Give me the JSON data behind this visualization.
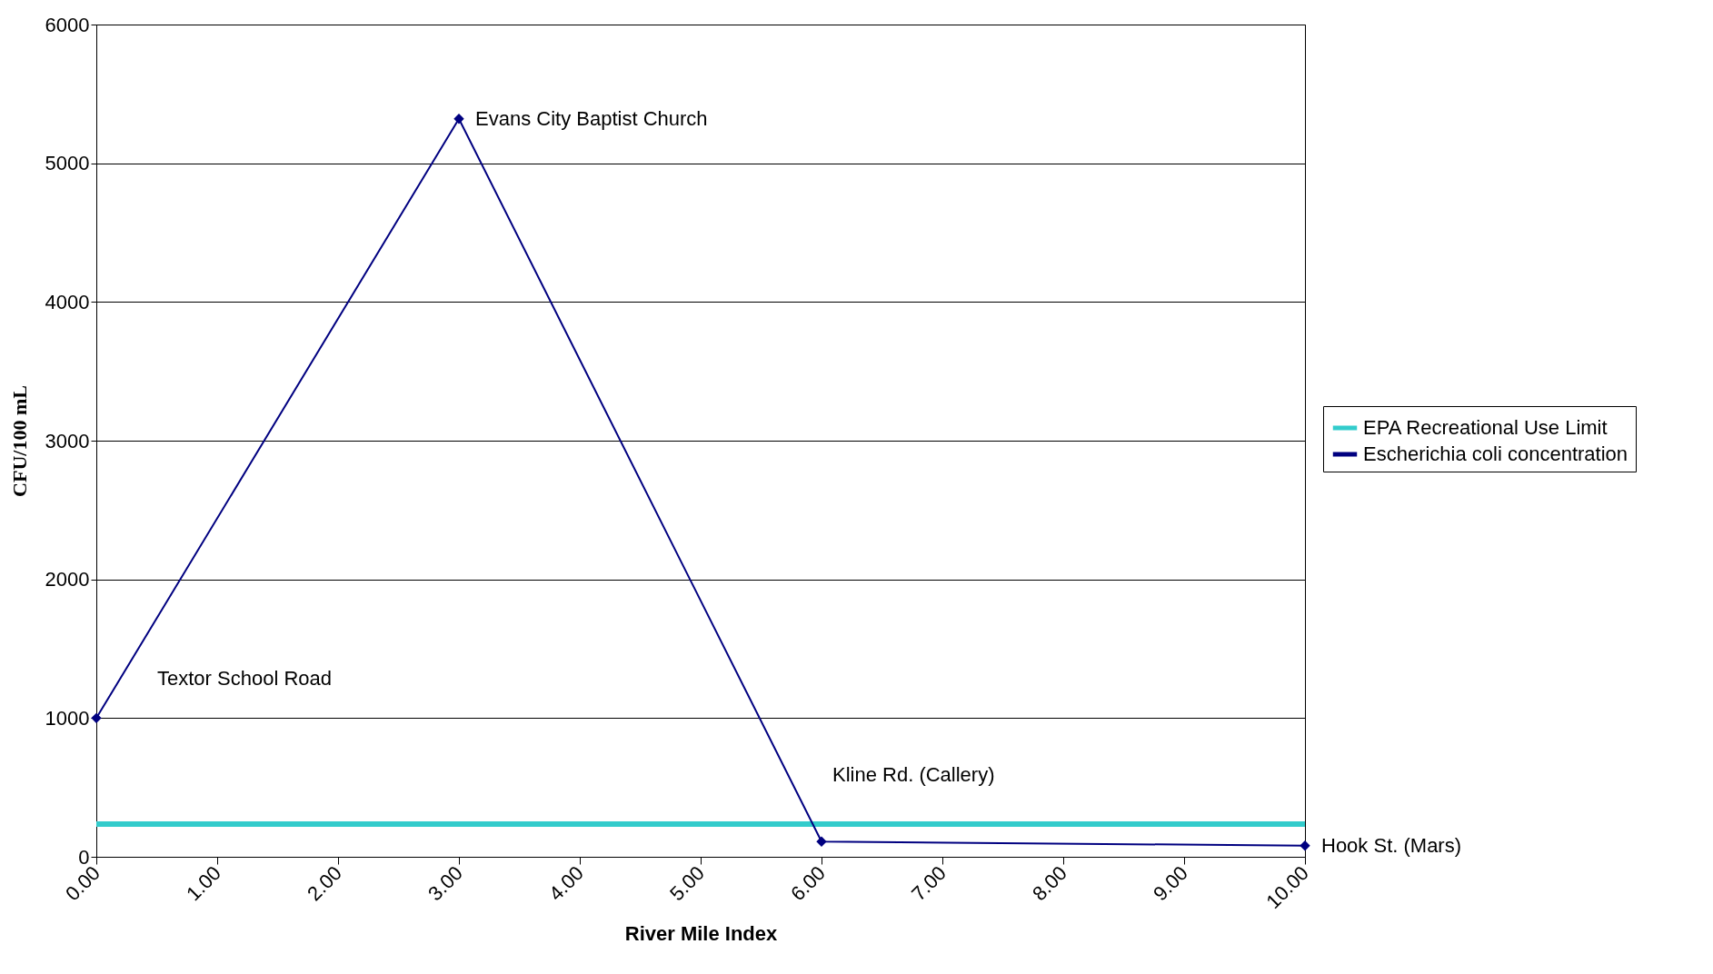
{
  "chart_data": {
    "type": "line",
    "xlabel": "River Mile Index",
    "ylabel": "CFU/100 mL",
    "xlim": [
      0,
      10
    ],
    "ylim": [
      0,
      6000
    ],
    "xticks": [
      {
        "value": 0,
        "label": "0.00"
      },
      {
        "value": 1,
        "label": "1.00"
      },
      {
        "value": 2,
        "label": "2.00"
      },
      {
        "value": 3,
        "label": "3.00"
      },
      {
        "value": 4,
        "label": "4.00"
      },
      {
        "value": 5,
        "label": "5.00"
      },
      {
        "value": 6,
        "label": "6.00"
      },
      {
        "value": 7,
        "label": "7.00"
      },
      {
        "value": 8,
        "label": "8.00"
      },
      {
        "value": 9,
        "label": "9.00"
      },
      {
        "value": 10,
        "label": "10.00"
      }
    ],
    "yticks": [
      0,
      1000,
      2000,
      3000,
      4000,
      5000,
      6000
    ],
    "grid": "y",
    "legend": "right",
    "series": [
      {
        "name": "EPA Recreational Use Limit",
        "color": "#33cccc",
        "x": [
          0,
          10
        ],
        "values": [
          235,
          235
        ],
        "marker": "none"
      },
      {
        "name": "Escherichia coli concentration",
        "color": "#000080",
        "x": [
          0,
          3,
          6,
          10
        ],
        "values": [
          1000,
          5320,
          110,
          80
        ],
        "marker": "diamond"
      }
    ],
    "annotations": [
      "Textor School Road",
      {
        "text": "Evans City Baptist Church",
        "x": 3,
        "y": 5320
      },
      {
        "text": "Kline Rd. (Callery)",
        "x": 6,
        "y": 110
      },
      {
        "text": "Hook St. (Mars)",
        "x": 10,
        "y": 80
      }
    ]
  }
}
